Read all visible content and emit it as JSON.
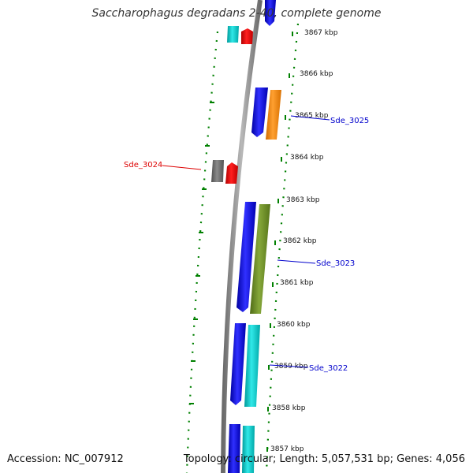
{
  "title": "Saccharophagus degradans 2-40, complete genome",
  "footer": {
    "accession": "Accession: NC_007912",
    "summary": "Topology: circular; Length: 5,057,531 bp; Genes: 4,056"
  },
  "ticks": [
    {
      "label": "3867 kbp"
    },
    {
      "label": "3866 kbp"
    },
    {
      "label": "3865 kbp"
    },
    {
      "label": "3864 kbp"
    },
    {
      "label": "3863 kbp"
    },
    {
      "label": "3862 kbp"
    },
    {
      "label": "3861 kbp"
    },
    {
      "label": "3860 kbp"
    },
    {
      "label": "3859 kbp"
    },
    {
      "label": "3858 kbp"
    },
    {
      "label": "3857 kbp"
    }
  ],
  "gene_labels": [
    {
      "label": "Sde_3025",
      "color": "#0000cc"
    },
    {
      "label": "Sde_3024",
      "color": "#dd0000"
    },
    {
      "label": "Sde_3023",
      "color": "#0000cc"
    },
    {
      "label": "Sde_3022",
      "color": "#0000cc"
    }
  ],
  "colors": {
    "cds_blue": "#1010e0",
    "cds_cyan": "#00c8c8",
    "cds_red": "#e80000",
    "cds_orange": "#ff8c00",
    "cds_olive": "#6b8e23",
    "cds_gray": "#707070",
    "backbone": "#8a8a8a",
    "dots": "#008000"
  }
}
